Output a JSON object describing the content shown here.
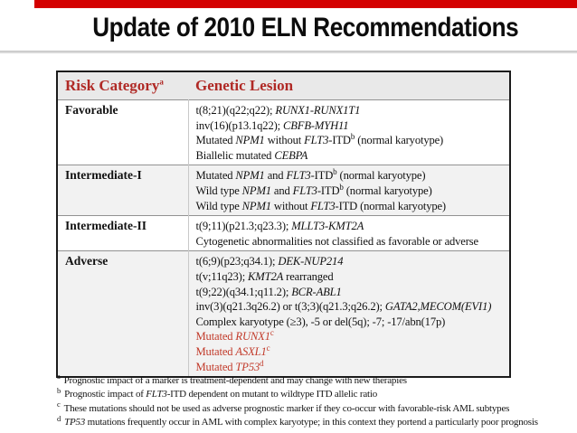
{
  "title": "Update of 2010 ELN Recommendations",
  "colors": {
    "accent_red": "#d40000",
    "header_red": "#b02a26",
    "mutated_red": "#c23b2b",
    "header_bg": "#e9e9e9",
    "zebra_bg": "#f2f2f2",
    "outer_border": "#1b1b1b"
  },
  "table": {
    "headers": [
      {
        "segments": [
          {
            "t": "Risk Category"
          },
          {
            "t": "a",
            "sup": true
          }
        ]
      },
      {
        "segments": [
          {
            "t": "Genetic Lesion"
          }
        ]
      }
    ],
    "rows": [
      {
        "category": "Favorable",
        "zebra": false,
        "lines": [
          {
            "segments": [
              {
                "t": "t(8;21)(q22;q22); "
              },
              {
                "t": "RUNX1-RUNX1T1",
                "i": true
              }
            ]
          },
          {
            "segments": [
              {
                "t": "inv(16)(p13.1q22); "
              },
              {
                "t": "CBFB-MYH11",
                "i": true
              }
            ]
          },
          {
            "segments": [
              {
                "t": "Mutated "
              },
              {
                "t": "NPM1",
                "i": true
              },
              {
                "t": " without "
              },
              {
                "t": "FLT3",
                "i": true
              },
              {
                "t": "-ITD"
              },
              {
                "t": "b",
                "sup": true
              },
              {
                "t": " (normal karyotype)"
              }
            ]
          },
          {
            "segments": [
              {
                "t": "Biallelic mutated "
              },
              {
                "t": "CEBPA",
                "i": true
              }
            ]
          }
        ]
      },
      {
        "category": "Intermediate-I",
        "zebra": true,
        "lines": [
          {
            "segments": [
              {
                "t": "Mutated "
              },
              {
                "t": "NPM1",
                "i": true
              },
              {
                "t": " and "
              },
              {
                "t": "FLT3",
                "i": true
              },
              {
                "t": "-ITD"
              },
              {
                "t": "b",
                "sup": true
              },
              {
                "t": " (normal karyotype)"
              }
            ]
          },
          {
            "segments": [
              {
                "t": "Wild type "
              },
              {
                "t": "NPM1",
                "i": true
              },
              {
                "t": " and "
              },
              {
                "t": "FLT3",
                "i": true
              },
              {
                "t": "-ITD"
              },
              {
                "t": "b",
                "sup": true
              },
              {
                "t": " (normal karyotype)"
              }
            ]
          },
          {
            "segments": [
              {
                "t": "Wild type "
              },
              {
                "t": "NPM1",
                "i": true
              },
              {
                "t": " without "
              },
              {
                "t": "FLT3",
                "i": true
              },
              {
                "t": "-ITD (normal karyotype)"
              }
            ]
          }
        ]
      },
      {
        "category": "Intermediate-II",
        "zebra": false,
        "lines": [
          {
            "segments": [
              {
                "t": "t(9;11)(p21.3;q23.3); "
              },
              {
                "t": "MLLT3-KMT2A",
                "i": true
              }
            ]
          },
          {
            "segments": [
              {
                "t": "Cytogenetic abnormalities not classified as favorable or adverse"
              }
            ]
          }
        ]
      },
      {
        "category": "Adverse",
        "zebra": true,
        "lines": [
          {
            "segments": [
              {
                "t": "t(6;9)(p23;q34.1); "
              },
              {
                "t": "DEK-NUP214",
                "i": true
              }
            ]
          },
          {
            "segments": [
              {
                "t": "t(v;11q23); "
              },
              {
                "t": "KMT2A",
                "i": true
              },
              {
                "t": " rearranged"
              }
            ]
          },
          {
            "segments": [
              {
                "t": "t(9;22)(q34.1;q11.2); "
              },
              {
                "t": "BCR-ABL1",
                "i": true
              }
            ]
          },
          {
            "segments": [
              {
                "t": "inv(3)(q21.3q26.2) or t(3;3)(q21.3;q26.2); "
              },
              {
                "t": "GATA2,MECOM(EVI1)",
                "i": true
              }
            ]
          },
          {
            "segments": [
              {
                "t": "Complex karyotype (≥3), -5 or del(5q); -7; -17/abn(17p)"
              }
            ]
          },
          {
            "red": true,
            "segments": [
              {
                "t": "Mutated "
              },
              {
                "t": "RUNX1",
                "i": true
              },
              {
                "t": "c",
                "sup": true
              }
            ]
          },
          {
            "red": true,
            "segments": [
              {
                "t": "Mutated "
              },
              {
                "t": "ASXL1",
                "i": true
              },
              {
                "t": "c",
                "sup": true
              }
            ]
          },
          {
            "red": true,
            "segments": [
              {
                "t": "Mutated "
              },
              {
                "t": "TP53",
                "i": true
              },
              {
                "t": "d",
                "sup": true
              }
            ]
          }
        ]
      }
    ]
  },
  "footnotes": [
    {
      "marker": "a",
      "segments": [
        {
          "t": "Prognostic impact of a marker is treatment-dependent and may change with new therapies"
        }
      ]
    },
    {
      "marker": "b",
      "segments": [
        {
          "t": "Prognostic impact of "
        },
        {
          "t": "FLT3",
          "i": true
        },
        {
          "t": "-ITD dependent on mutant to wildtype ITD allelic ratio"
        }
      ]
    },
    {
      "marker": "c",
      "segments": [
        {
          "t": "These mutations should not be used as adverse prognostic marker if they co-occur with favorable-risk AML subtypes"
        }
      ]
    },
    {
      "marker": "d",
      "segments": [
        {
          "t": "TP53",
          "i": true
        },
        {
          "t": " mutations frequently occur in AML with complex karyotype; in this context they portend a particularly poor prognosis"
        }
      ]
    }
  ]
}
